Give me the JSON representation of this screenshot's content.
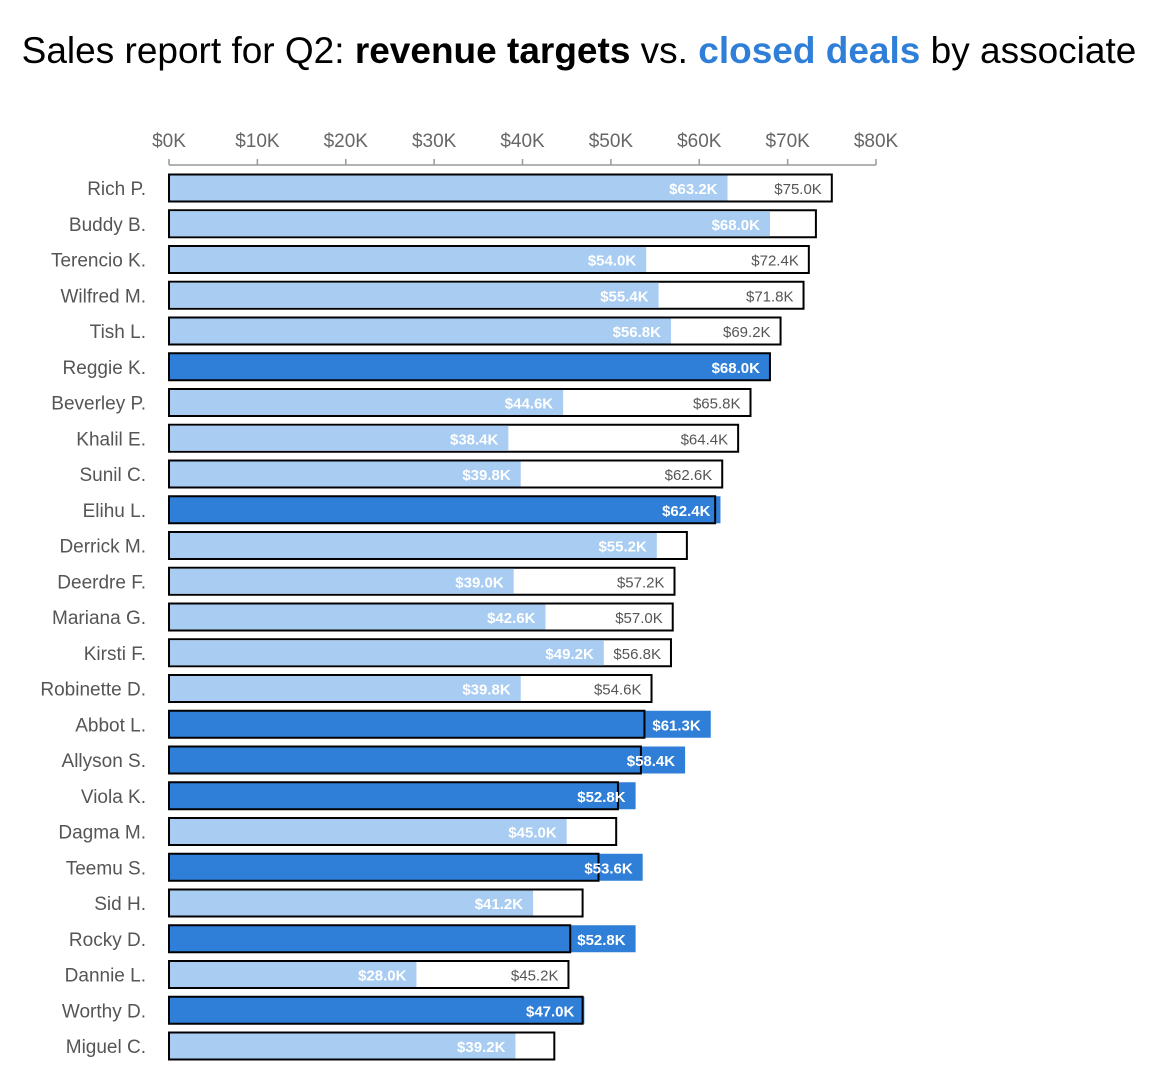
{
  "chart_data": {
    "type": "bar",
    "orientation": "horizontal",
    "title_parts": [
      {
        "text": "Sales report for Q2: ",
        "style": "normal"
      },
      {
        "text": "revenue targets",
        "style": "bold"
      },
      {
        "text": " vs. ",
        "style": "normal"
      },
      {
        "text": "closed deals",
        "style": "bold-blue"
      },
      {
        "text": " by associate",
        "style": "normal"
      }
    ],
    "xlim": [
      0,
      80000
    ],
    "xtick_values": [
      0,
      10000,
      20000,
      30000,
      40000,
      50000,
      60000,
      70000,
      80000
    ],
    "xtick_labels": [
      "$0K",
      "$10K",
      "$20K",
      "$30K",
      "$40K",
      "$50K",
      "$60K",
      "$70K",
      "$80K"
    ],
    "x_axis_position": "top",
    "grid": false,
    "colors": {
      "below_target": "#a9cdf2",
      "met_target": "#2f7fd8",
      "target_outline": "#000000"
    },
    "categories": [
      "Rich P.",
      "Buddy B.",
      "Terencio K.",
      "Wilfred M.",
      "Tish L.",
      "Reggie K.",
      "Beverley P.",
      "Khalil E.",
      "Sunil C.",
      "Elihu L.",
      "Derrick M.",
      "Deerdre F.",
      "Mariana G.",
      "Kirsti F.",
      "Robinette D.",
      "Abbot L.",
      "Allyson S.",
      "Viola K.",
      "Dagma M.",
      "Teemu S.",
      "Sid H.",
      "Rocky D.",
      "Dannie L.",
      "Worthy D.",
      "Miguel C."
    ],
    "series": [
      {
        "name": "revenue targets",
        "values": [
          75000,
          73200,
          72400,
          71800,
          69200,
          68000,
          65800,
          64400,
          62600,
          61800,
          58600,
          57200,
          57000,
          56800,
          54600,
          53800,
          53400,
          50800,
          50600,
          48600,
          46800,
          45400,
          45200,
          46800,
          43600
        ],
        "labels": [
          "$75.0K",
          "",
          "$72.4K",
          "$71.8K",
          "$69.2K",
          "",
          "$65.8K",
          "$64.4K",
          "$62.6K",
          "",
          "",
          "$57.2K",
          "$57.0K",
          "$56.8K",
          "$54.6K",
          "",
          "",
          "",
          "",
          "",
          "",
          "",
          "$45.2K",
          "",
          ""
        ]
      },
      {
        "name": "closed deals",
        "values": [
          63200,
          68000,
          54000,
          55400,
          56800,
          68000,
          44600,
          38400,
          39800,
          62400,
          55200,
          39000,
          42600,
          49200,
          39800,
          61300,
          58400,
          52800,
          45000,
          53600,
          41200,
          52800,
          28000,
          47000,
          39200
        ],
        "labels": [
          "$63.2K",
          "$68.0K",
          "$54.0K",
          "$55.4K",
          "$56.8K",
          "$68.0K",
          "$44.6K",
          "$38.4K",
          "$39.8K",
          "$62.4K",
          "$55.2K",
          "$39.0K",
          "$42.6K",
          "$49.2K",
          "$39.8K",
          "$61.3K",
          "$58.4K",
          "$52.8K",
          "$45.0K",
          "$53.6K",
          "$41.2K",
          "$52.8K",
          "$28.0K",
          "$47.0K",
          "$39.2K"
        ],
        "met_target": [
          false,
          false,
          false,
          false,
          false,
          true,
          false,
          false,
          false,
          true,
          false,
          false,
          false,
          false,
          false,
          true,
          true,
          true,
          false,
          true,
          false,
          true,
          false,
          true,
          false
        ]
      }
    ]
  }
}
